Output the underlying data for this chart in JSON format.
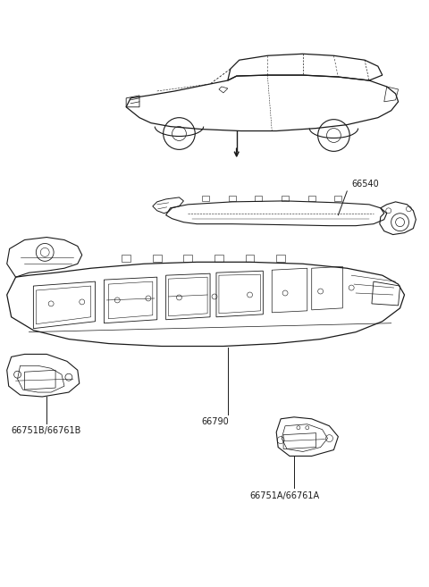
{
  "bg_color": "#ffffff",
  "line_color": "#1a1a1a",
  "label_color": "#1a1a1a",
  "labels": {
    "part1": "66540",
    "part2": "66751B/66761B",
    "part3": "66790",
    "part4": "66751A/66761A"
  },
  "figsize": [
    4.8,
    6.57
  ],
  "dpi": 100,
  "lw_main": 0.7,
  "lw_detail": 0.4,
  "label_fontsize": 7.0,
  "label_font": "DejaVu Sans"
}
